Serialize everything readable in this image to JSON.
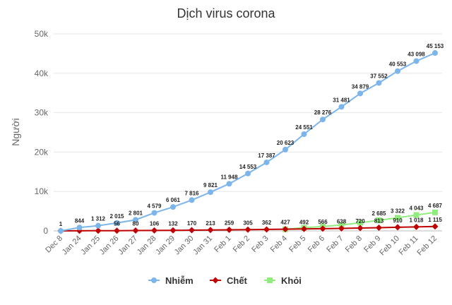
{
  "chart_data": {
    "type": "line",
    "title": "Dịch virus corona",
    "xlabel": "",
    "ylabel": "Người",
    "ylim": [
      0,
      50000
    ],
    "yticks": [
      0,
      10000,
      20000,
      30000,
      40000,
      50000
    ],
    "ytick_labels": [
      "0",
      "10k",
      "20k",
      "30k",
      "40k",
      "50k"
    ],
    "grid": "horizontal",
    "legend_position": "bottom",
    "categories": [
      "Dec 8",
      "Jan 24",
      "Jan 25",
      "Jan 26",
      "Jan 27",
      "Jan 28",
      "Jan 29",
      "Jan 30",
      "Jan 31",
      "Feb 1",
      "Feb 2",
      "Feb 3",
      "Feb 4",
      "Feb 5",
      "Feb 6",
      "Feb 7",
      "Feb 8",
      "Feb 9",
      "Feb 10",
      "Feb 11",
      "Feb 12"
    ],
    "series": [
      {
        "name": "Nhiễm",
        "color": "#7cb5ec",
        "marker": "circle",
        "values": [
          1,
          844,
          1312,
          2015,
          2801,
          4579,
          6061,
          7816,
          9821,
          11948,
          14553,
          17387,
          20623,
          24551,
          28276,
          31481,
          34879,
          37552,
          40553,
          43098,
          45153
        ],
        "labels": [
          "1",
          "844",
          "1 312",
          "2 015",
          "2 801",
          "4 579",
          "6 061",
          "7 816",
          "9 821",
          "11 948",
          "14 553",
          "17 387",
          "20 623",
          "24 551",
          "28 276",
          "31 481",
          "34 879",
          "37 552",
          "40 553",
          "43 098",
          "45 153"
        ]
      },
      {
        "name": "Chết",
        "color": "#c00000",
        "marker": "diamond",
        "values": [
          0,
          25,
          41,
          56,
          80,
          106,
          132,
          170,
          213,
          259,
          305,
          362,
          427,
          492,
          566,
          638,
          720,
          813,
          910,
          1018,
          1115
        ],
        "labels": [
          "",
          "",
          "",
          "56",
          "80",
          "106",
          "132",
          "170",
          "213",
          "259",
          "305",
          "362",
          "427",
          "492",
          "566",
          "638",
          "720",
          "813",
          "910",
          "1 018",
          "1 115"
        ]
      },
      {
        "name": "Khỏi",
        "color": "#90ed7d",
        "marker": "square",
        "values": [
          null,
          null,
          null,
          null,
          null,
          null,
          null,
          null,
          null,
          null,
          null,
          null,
          400,
          800,
          1100,
          1500,
          2050,
          2685,
          3322,
          4043,
          4687
        ],
        "labels": [
          "",
          "",
          "",
          "",
          "",
          "",
          "",
          "",
          "",
          "",
          "",
          "",
          "",
          "",
          "",
          "",
          "",
          "2 685",
          "3 322",
          "4 043",
          "4 687"
        ]
      }
    ]
  }
}
